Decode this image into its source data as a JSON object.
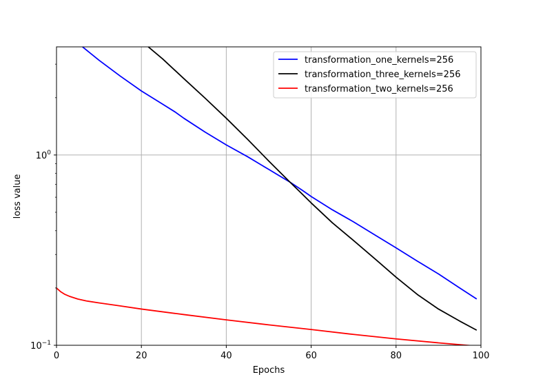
{
  "chart_data": {
    "type": "line",
    "xlabel": "Epochs",
    "ylabel": "loss value",
    "xlim": [
      0,
      100
    ],
    "ylim": [
      0.1,
      3.7
    ],
    "yscale": "log",
    "grid": true,
    "legend_position": "top-right",
    "x_ticks": [
      {
        "value": 0,
        "label": "0"
      },
      {
        "value": 20,
        "label": "20"
      },
      {
        "value": 40,
        "label": "40"
      },
      {
        "value": 60,
        "label": "60"
      },
      {
        "value": 80,
        "label": "80"
      },
      {
        "value": 100,
        "label": "100"
      }
    ],
    "y_ticks": [
      {
        "value": 0.1,
        "base": "10",
        "exp": "−1"
      },
      {
        "value": 1,
        "base": "10",
        "exp": "0"
      }
    ],
    "series": [
      {
        "name": "transformation_one_kernels=256",
        "color": "#0000ff",
        "x": [
          6,
          10,
          15,
          20,
          25,
          28,
          30,
          35,
          40,
          45,
          50,
          55,
          58,
          60,
          65,
          70,
          75,
          80,
          85,
          90,
          95,
          99
        ],
        "y": [
          3.72,
          3.15,
          2.6,
          2.17,
          1.85,
          1.68,
          1.56,
          1.32,
          1.13,
          0.98,
          0.84,
          0.72,
          0.65,
          0.605,
          0.515,
          0.445,
          0.38,
          0.325,
          0.277,
          0.237,
          0.2,
          0.175
        ]
      },
      {
        "name": "transformation_three_kernels=256",
        "color": "#000000",
        "x": [
          21.5,
          25,
          30,
          35,
          40,
          45,
          50,
          55,
          58,
          60,
          65,
          70,
          75,
          80,
          85,
          90,
          95,
          99
        ],
        "y": [
          3.72,
          3.2,
          2.52,
          1.99,
          1.56,
          1.21,
          0.93,
          0.72,
          0.62,
          0.56,
          0.44,
          0.355,
          0.285,
          0.228,
          0.185,
          0.155,
          0.134,
          0.12
        ]
      },
      {
        "name": "transformation_two_kernels=256",
        "color": "#ff0000",
        "x": [
          0,
          1,
          2,
          3,
          5,
          7,
          10,
          15,
          20,
          30,
          40,
          50,
          60,
          70,
          80,
          90,
          99
        ],
        "y": [
          0.2,
          0.191,
          0.185,
          0.181,
          0.175,
          0.171,
          0.167,
          0.161,
          0.155,
          0.145,
          0.136,
          0.128,
          0.121,
          0.114,
          0.108,
          0.103,
          0.099
        ]
      }
    ]
  }
}
